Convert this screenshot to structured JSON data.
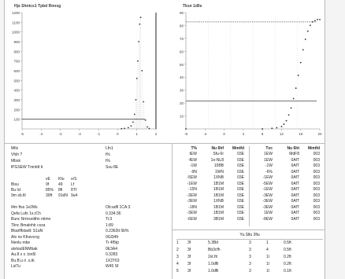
{
  "colors": {
    "plot_line": "#2b2b2b",
    "reference_line": "#444444",
    "grid": "#c8c8c8",
    "separator": "#bdbdbd"
  },
  "chart_data": [
    {
      "type": "histogram",
      "title": "Hjs Shntcs1 Tpbd Rnnsg",
      "x_ticks": [
        "-5",
        "-4",
        "-3",
        "-2",
        "-1",
        "0",
        "1",
        "2"
      ],
      "y_ticks": [
        "1200",
        "1100",
        "1000",
        "900",
        "800",
        "700",
        "600",
        "500",
        "400",
        "300",
        "200",
        "100"
      ],
      "xlim": [
        -5,
        2
      ],
      "ylim": [
        0,
        1200
      ],
      "reference_value": 100,
      "bins": [
        {
          "x": 0.2,
          "y": 2
        },
        {
          "x": 0.35,
          "y": 5
        },
        {
          "x": 0.55,
          "y": 12
        },
        {
          "x": 0.7,
          "y": 30
        },
        {
          "x": 0.8,
          "y": 70
        },
        {
          "x": 0.88,
          "y": 150
        },
        {
          "x": 0.95,
          "y": 300
        },
        {
          "x": 1.0,
          "y": 520
        },
        {
          "x": 1.05,
          "y": 700
        },
        {
          "x": 1.1,
          "y": 900
        },
        {
          "x": 1.15,
          "y": 1080
        },
        {
          "x": 1.2,
          "y": 1150
        },
        {
          "x": 1.27,
          "y": 600
        },
        {
          "x": 1.35,
          "y": 280
        },
        {
          "x": 1.45,
          "y": 90
        },
        {
          "x": 1.55,
          "y": 20
        },
        {
          "x": 1.65,
          "y": 4
        }
      ]
    },
    {
      "type": "line",
      "title": "Tksn 1dlls",
      "x_ticks": [
        "-8",
        "-4",
        "0",
        "4",
        "8",
        "12",
        "16",
        "20"
      ],
      "y_ticks": [
        "90",
        "80",
        "70",
        "60",
        "50",
        "40",
        "30",
        "20",
        "10"
      ],
      "xlim": [
        -8,
        20
      ],
      "ylim": [
        0,
        100
      ],
      "reference_values": [
        92,
        24
      ],
      "series": [
        {
          "x": [
            -8,
            8,
            10,
            11,
            12,
            12.5,
            13,
            13.5,
            14,
            14.5,
            15,
            15.5,
            16,
            16.5,
            17,
            17.5,
            18,
            18.5,
            19,
            19.5,
            20
          ],
          "y": [
            0,
            0,
            0.5,
            1,
            2,
            4,
            7,
            12,
            18,
            26,
            35,
            46,
            57,
            68,
            77,
            84,
            89,
            92,
            93,
            94,
            94
          ]
        }
      ]
    }
  ],
  "summary": {
    "rows": [
      {
        "label": "Mtlz",
        "value": "Lfn1"
      },
      {
        "label": "Vfsh ?",
        "value": "t%"
      },
      {
        "label": "Mbsk",
        "value": "t%"
      },
      {
        "label": "lPGSEW Tmnldt ti",
        "value": "Ssu 8E"
      }
    ],
    "grid_head": [
      "vE",
      "Kfu",
      "vrS"
    ],
    "grid_rows": [
      {
        "label": "Blsu",
        "v": [
          "9f",
          "49",
          "Lf"
        ]
      },
      {
        "label": "Bu lct",
        "v": [
          "85%",
          "8fi",
          "8Tf"
        ]
      },
      {
        "label": "9m sb.fil",
        "v": [
          "30ft",
          "91dN",
          "9u4"
        ]
      }
    ],
    "kv_rows": [
      {
        "label": "l4m ftss 1e2Ms",
        "value": "Ob:adfl 1CA:3"
      },
      {
        "label": "Qefa Lufs 1s,rCh",
        "value": "0.334:36"
      },
      {
        "label": "Bunc Nrmsoiithn mlmn",
        "value": "Ti:3"
      },
      {
        "label": "Tlinc Bmalnhlr cxza",
        "value": "1:89"
      },
      {
        "label": "Bkarflfstadt: S1aN",
        "value": "0.2362tt 0b%"
      },
      {
        "label": "Atv ns Kfnsvcng",
        "value": "0Gl34fr"
      },
      {
        "label": "Nenlu mbe",
        "value": "Tr 4f5tp"
      },
      {
        "label": "alvtoulENMbak",
        "value": "0E3A4"
      },
      {
        "label": "Au.8 s s .tsn5l",
        "value": "0.3283"
      },
      {
        "label": "Bu.B.u ri .s.tk",
        "value": "1X3T63"
      },
      {
        "label": "LsiTu",
        "value": "W45 Sf"
      }
    ]
  },
  "table_a": {
    "left_head": [
      "T%",
      "Nu 6hf",
      "Mmtfd"
    ],
    "right_head": [
      "Tvc",
      "Nu 6ht",
      "Mmtfd"
    ],
    "left_rows": [
      [
        "tEW",
        "Sfu-6r",
        "03E"
      ],
      [
        "-fEW",
        "1o-NL8",
        "03E"
      ],
      [
        "-1W",
        "10BB",
        "03E"
      ],
      [
        "-9N",
        "1WN",
        "03E"
      ],
      [
        "-5EW",
        "1XNB",
        "03E"
      ],
      [
        "-1EW",
        "1B1M",
        "03E"
      ],
      [
        "-15N",
        "1B1M",
        "03E"
      ],
      [
        "-3EW",
        "1B1M",
        "03E"
      ],
      [
        "-3EW",
        "1XNB",
        "03E"
      ],
      [
        "-18N",
        "1B1M",
        "03E"
      ],
      [
        "-3EW",
        "1B1M",
        "03E"
      ],
      [
        "-6EW",
        "3B1M",
        "03E"
      ]
    ],
    "right_rows": [
      [
        "1EW",
        "MdF8",
        "003"
      ],
      [
        "1EW",
        "0AfT",
        "003"
      ],
      [
        "-1W",
        "0AfT",
        "003"
      ],
      [
        "-6%",
        "0AfT",
        "003"
      ],
      [
        "-1EW",
        "0AfT",
        "003"
      ],
      [
        "-5EW",
        "0AfT",
        "003"
      ],
      [
        "-1EW",
        "0AfT",
        "003"
      ],
      [
        "-3EW",
        "0AfT",
        "003"
      ],
      [
        "-3EW",
        "0AfT",
        "003"
      ],
      [
        "-3EW",
        "0AfT",
        "003"
      ],
      [
        "1EW",
        "0AfT",
        "003"
      ],
      [
        "-8EW",
        "0AfT",
        "003"
      ]
    ]
  },
  "table_b": {
    "title": "Yu.Sltu 3fiu",
    "rows": [
      [
        "1",
        "3f",
        "5.3Bd",
        "3",
        "1",
        "0.5ft"
      ],
      [
        "2",
        "3f",
        "Bb3cfh",
        "3",
        "4",
        "0.5ft"
      ],
      [
        "3",
        "3f",
        "2st.fit",
        "3",
        "1l",
        "0.2ft"
      ],
      [
        "4",
        "3f",
        "1.0dfli",
        "3",
        "1l",
        "0.2ft"
      ],
      [
        "5",
        "3f",
        "1.0dfli",
        "3",
        "1l",
        "0.1ft"
      ]
    ]
  }
}
